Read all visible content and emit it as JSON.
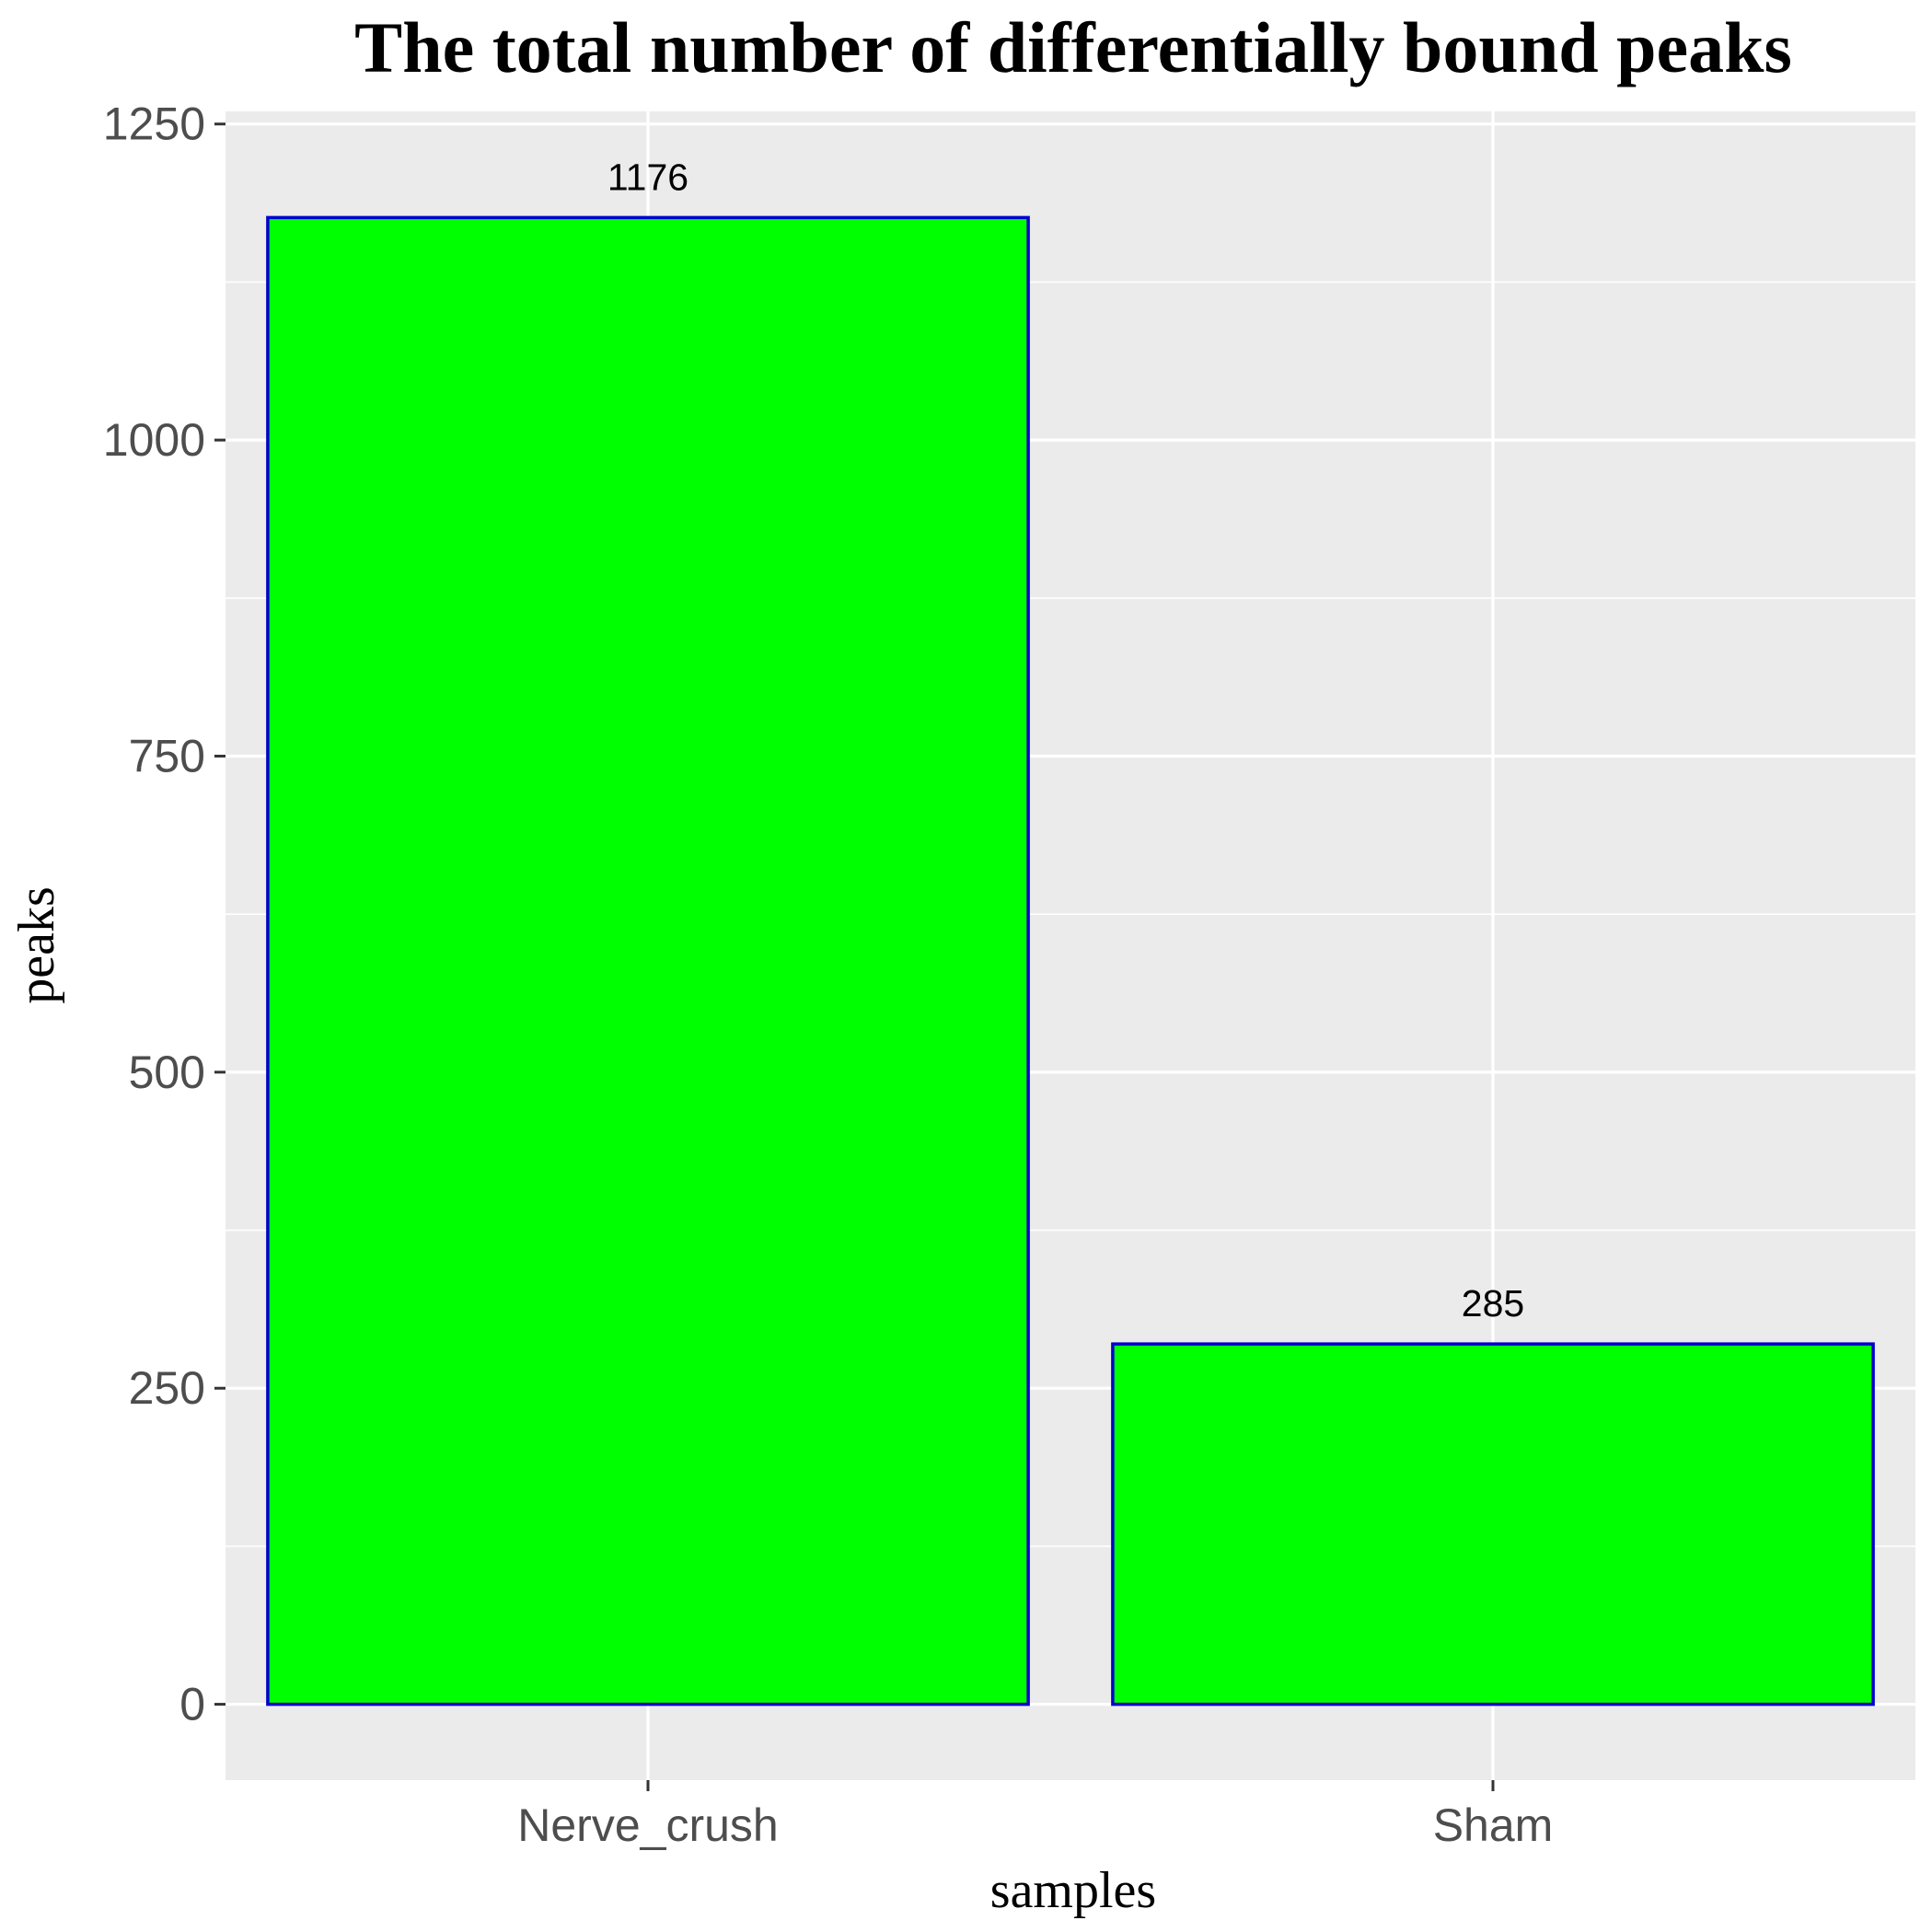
{
  "chart_data": {
    "type": "bar",
    "title": "The total number of differentially bound peaks",
    "xlabel": "samples",
    "ylabel": "peaks",
    "categories": [
      "Nerve_crush",
      "Sham"
    ],
    "values": [
      1176,
      285
    ],
    "data_labels": [
      "1176",
      "285"
    ],
    "ylim": [
      -60,
      1260
    ],
    "y_ticks": [
      0,
      250,
      500,
      750,
      1000,
      1250
    ],
    "y_tick_labels": [
      "0",
      "250",
      "500",
      "750",
      "1000",
      "1250"
    ],
    "grid": true,
    "legend": "none",
    "colors": {
      "bar_fill": "#00ff00",
      "bar_outline": "#0000cd",
      "panel_background": "#ebebeb",
      "grid_line": "#ffffff",
      "tick_label": "#4d4d4d"
    }
  }
}
